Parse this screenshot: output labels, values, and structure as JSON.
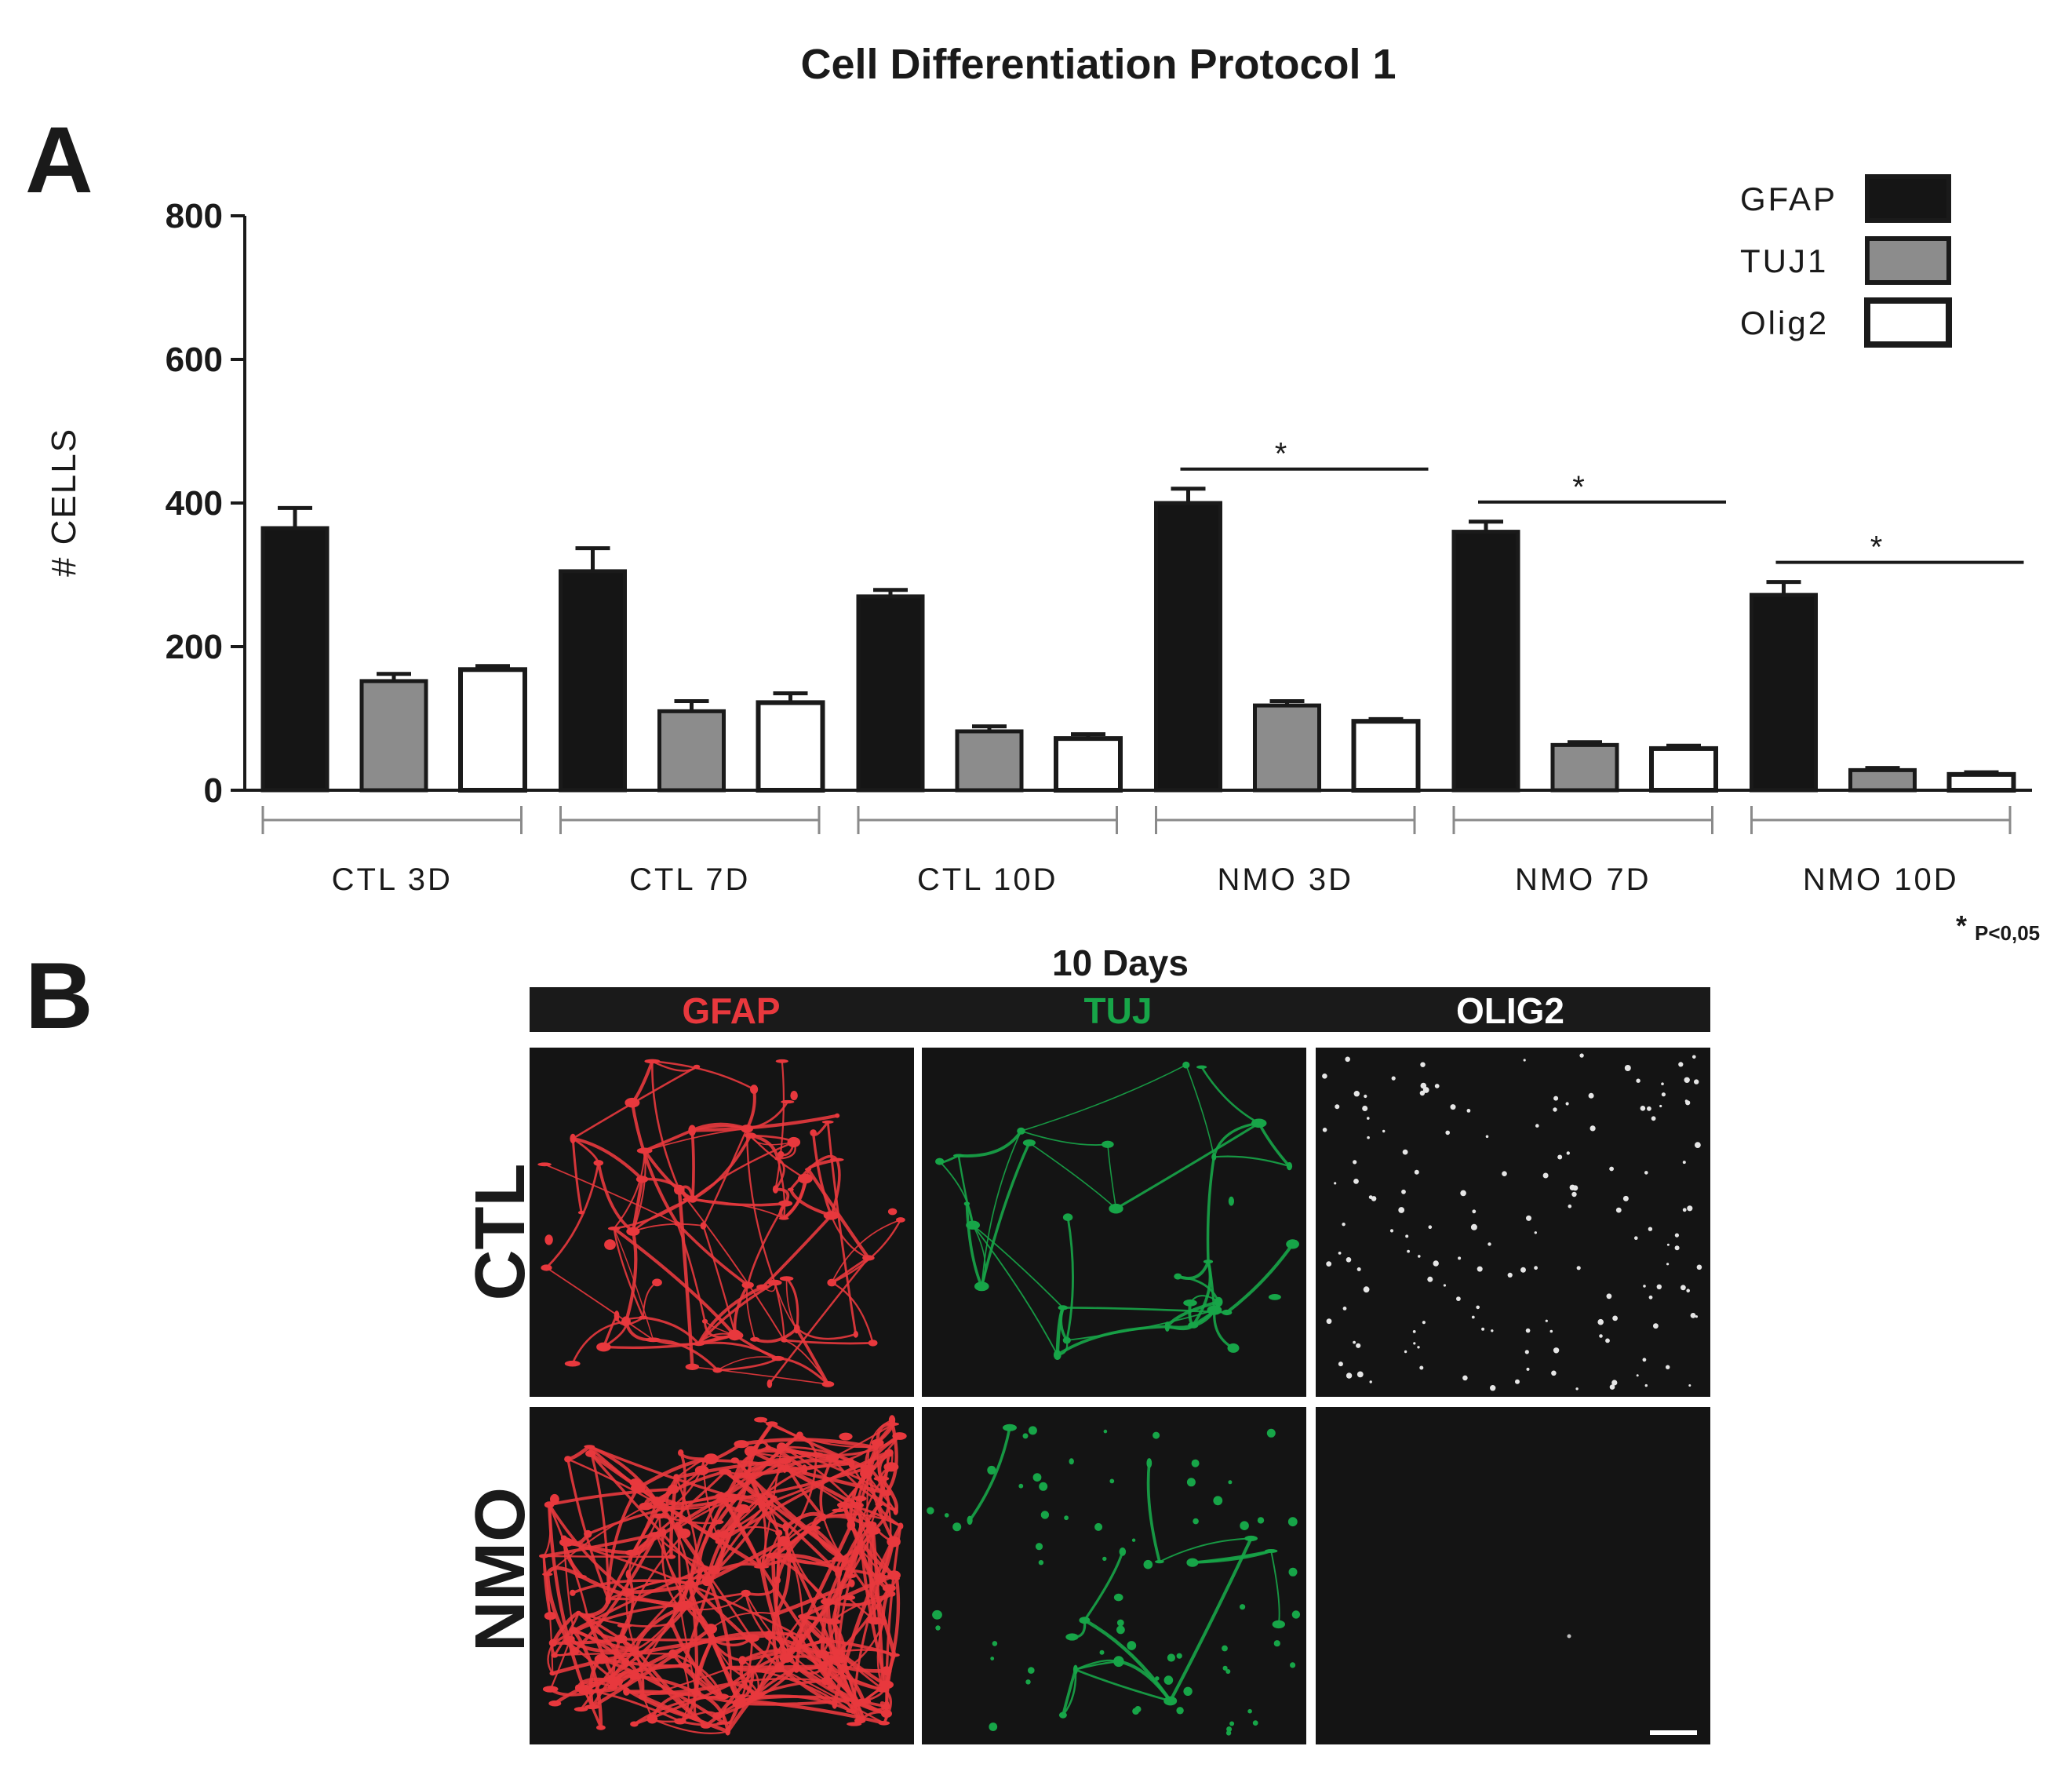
{
  "figure": {
    "title": "Cell Differentiation Protocol 1",
    "panel_a_label": "A",
    "panel_b_label": "B"
  },
  "chart_data": {
    "type": "bar",
    "title": "Cell Differentiation Protocol 1",
    "xlabel": "",
    "ylabel": "# CELLS",
    "ylim": [
      0,
      800
    ],
    "yticks": [
      0,
      200,
      400,
      600,
      800
    ],
    "categories": [
      "CTL 3D",
      "CTL 7D",
      "CTL 10D",
      "NMO 3D",
      "NMO 7D",
      "NMO 10D"
    ],
    "series": [
      {
        "name": "GFAP",
        "color": "#151515",
        "values": [
          365,
          305,
          270,
          400,
          360,
          272
        ],
        "errors": [
          28,
          32,
          9,
          20,
          14,
          18
        ]
      },
      {
        "name": "TUJ1",
        "color": "#8c8c8c",
        "values": [
          152,
          110,
          82,
          118,
          63,
          28
        ],
        "errors": [
          10,
          14,
          7,
          6,
          4,
          3
        ]
      },
      {
        "name": "Olig2",
        "color": "#ffffff",
        "values": [
          168,
          122,
          72,
          96,
          58,
          22
        ],
        "errors": [
          5,
          13,
          6,
          3,
          4,
          3
        ]
      }
    ],
    "legend_position": "top-right",
    "grid": false,
    "significance": [
      {
        "category": "NMO 3D",
        "label": "*"
      },
      {
        "category": "NMO 7D",
        "label": "*"
      },
      {
        "category": "NMO 10D",
        "label": "*"
      }
    ],
    "p_note_star": "*",
    "p_note": "P<0,05"
  },
  "panel_b": {
    "header": "10 Days",
    "channels": [
      {
        "name": "GFAP",
        "color": "#e8383d"
      },
      {
        "name": "TUJ",
        "color": "#17a548"
      },
      {
        "name": "OLIG2",
        "color": "#ffffff"
      }
    ],
    "rows": [
      "CTL",
      "NMO"
    ]
  }
}
